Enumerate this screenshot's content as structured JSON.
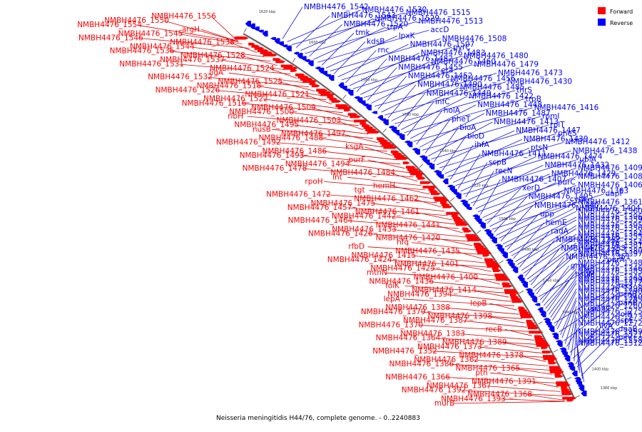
{
  "caption": "Neisseria meningitidis H44/76, complete genome. - 0..2240883",
  "legend": [
    {
      "label": "Forward",
      "color": "#ff0000"
    },
    {
      "label": "Reverse",
      "color": "#0000ff"
    }
  ],
  "colors": {
    "forward": "#ff0000",
    "forward_line": "#d80000",
    "reverse": "#0000ff",
    "reverse_line": "#1414e6",
    "backbone": "#777777"
  },
  "ticks": [
    "1620 kbp",
    "1600 kbp",
    "1580 kbp",
    "1560 kbp",
    "1540 kbp",
    "1520 kbp",
    "1500 kbp",
    "1480 kbp",
    "1460 kbp",
    "1440 kbp",
    "1420 kbp",
    "1400 kbp",
    "1380 kbp"
  ],
  "left_labels": [
    "NMBH4476_1556",
    "NMBH4476_1550",
    "NMBH4476_1554",
    "argH",
    "NMBH4476_1545",
    "NMBH4476_1546",
    "NMBH4476_1538",
    "NMBH4476_1544",
    "NMBH4476_1536",
    "NMBH4476_1528",
    "NMBH4476_1537",
    "NMBH4476_1531",
    "NMBH4476_1524",
    "ligA",
    "NMBH4476_1532",
    "NMBH4476_1525",
    "NMBH4476_1518",
    "NMBH4476_1526",
    "NMBH4476_1521",
    "NMBH4476_1522",
    "NMBH4476_1516",
    "NMBH4476_1509",
    "NMBH4476_1500",
    "ribH",
    "NMBH4476_1503",
    "NMBH4476_1495",
    "nusB",
    "NMBH4476_1497",
    "NMBH4476_1488",
    "NMBH4476_1492",
    "ksgA",
    "NMBH4476_1486",
    "NMBH4476_1493",
    "purF",
    "NMBH4476_1494",
    "NMBH4476_1478",
    "NMBH4476_1484",
    "lnt",
    "rpoH",
    "hemH",
    "tgt",
    "NMBH4476_1472",
    "NMBH4476_1462",
    "NMBH4476_1475",
    "NMBH4476_1457",
    "NMBH4476_1461",
    "NMBH4476_1442",
    "NMBH4476_1464",
    "NMBH4476_1441",
    "NMBH4476_1433",
    "NMBH4476_1426",
    "NMBH4476_1420",
    "hfq",
    "rfbD",
    "NMBH4476_1435",
    "NMBH4476_1415",
    "NMBH4476_1424",
    "NMBH4476_1401",
    "NMBH4476_1425",
    "mtnN",
    "NMBH4476_1400",
    "NMBH4476_1436",
    "folK",
    "NMBH4476_1414",
    "NMBH4476_1394",
    "lepA",
    "lepB",
    "NMBH4476_1388",
    "NMBH4476_1379",
    "NMBH4476_1398",
    "NMBH4476_1387",
    "NMBH4476_1370",
    "recB",
    "NMBH4476_1383",
    "NMBH4476_1364",
    "NMBH4476_1389",
    "NMBH4476_1373",
    "NMBH4476_1352",
    "NMBH4476_1378",
    "NMBH4476_1362",
    "NMBH4476_1386",
    "NMBH4476_1365",
    "pth",
    "NMBH4476_1366",
    "NMBH4476_1391",
    "NMBH4476_1367",
    "NMBH4476_1392",
    "NMBH4476_1368",
    "NMBH4476_1393",
    "murB"
  ],
  "right_labels": [
    "NMBH4476_1542",
    "NMBH4476_1530",
    "NMBH4476_1515",
    "NMBH4476_1543",
    "NMBH4476_1529",
    "NMBH4476_1513",
    "NMBH4476_1520",
    "trpA",
    "accD",
    "tmk",
    "lpxK",
    "NMBH4476_1508",
    "kdsB",
    "NMBH4476_1507",
    "pyrC",
    "rnc",
    "NMBH4476_1483",
    "NMBH4476_1480",
    "NMBH4476_1482",
    "NMBH4476_1460",
    "NMBH4476_1479",
    "NMBH4476_1455",
    "era",
    "NMBH4476_1473",
    "NMBH4476_1452",
    "NMBH4476_1456",
    "NMBH4476_1430",
    "NMBH4476_1490",
    "NMBH4476_1485",
    "thrS",
    "NMBH4476_1449",
    "NMBH4476_1422",
    "trpB",
    "infC",
    "NMBH4476_1448",
    "NMBH4476_1416",
    "holA",
    "NMBH4476_1487",
    "rpmI",
    "pheT",
    "NMBH4476_1413",
    "rplT",
    "bioA",
    "NMBH4476_1447",
    "pheS",
    "bioD",
    "NMBH4476_1439",
    "NMBH4476_1412",
    "ihfA",
    "ptsN",
    "NMBH4476_1438",
    "NMBH4476_1411",
    "NMBH4476_1474",
    "ubiA",
    "scpB",
    "NMBH4476_1432",
    "NMBH4476_1409",
    "recN",
    "NMBH4476_1429",
    "NMBH4476_1408",
    "NMBH4476_1407",
    "purC",
    "NMBH4476_1406",
    "xerD",
    "NMBH4476_1363",
    "dapF",
    "NMBH4476_1405",
    "cysK",
    "NMBH4476_1361",
    "NMBH4476_1440",
    "NMBH4476_1404",
    "NMBH4476_1360",
    "upp",
    "NMBH4476_1396",
    "NMBH4476_1359",
    "hemE",
    "NMBH4476_1395",
    "NMBH4476_1356",
    "radA",
    "NMBH4476_1384",
    "NMBH4476_1355",
    "NMBH4476_1382",
    "NMBH4476_1354",
    "NMBH4476_1381",
    "NMBH4476_1353",
    "NMBH4476_1380",
    "NMBH4476_1397",
    "NMBH4476_1351",
    "purA",
    "NMBH4476_1348",
    "gme",
    "NMBH4476_1346",
    "NMBH4476_1385",
    "hsdM",
    "NMBH4476_1345",
    "NMBH4476_1299",
    "NMBH4476_1372",
    "recJ",
    "NMBH4476_1298",
    "NMBH4476_1290",
    "pcnB",
    "NMBH4476_1340",
    "NMBH4476_1285",
    "panB",
    "NMBH4476_1280",
    "panC",
    "NMBH4476_1275",
    "lolB",
    "NMBH4476_1273",
    "ispE",
    "NMBH4476_1272",
    "ilvA",
    "dnaB",
    "NMBH4476_1259",
    "NMBH4476_1321",
    "pilV",
    "NMBH4476_1258",
    "NMBH4476_1312"
  ]
}
